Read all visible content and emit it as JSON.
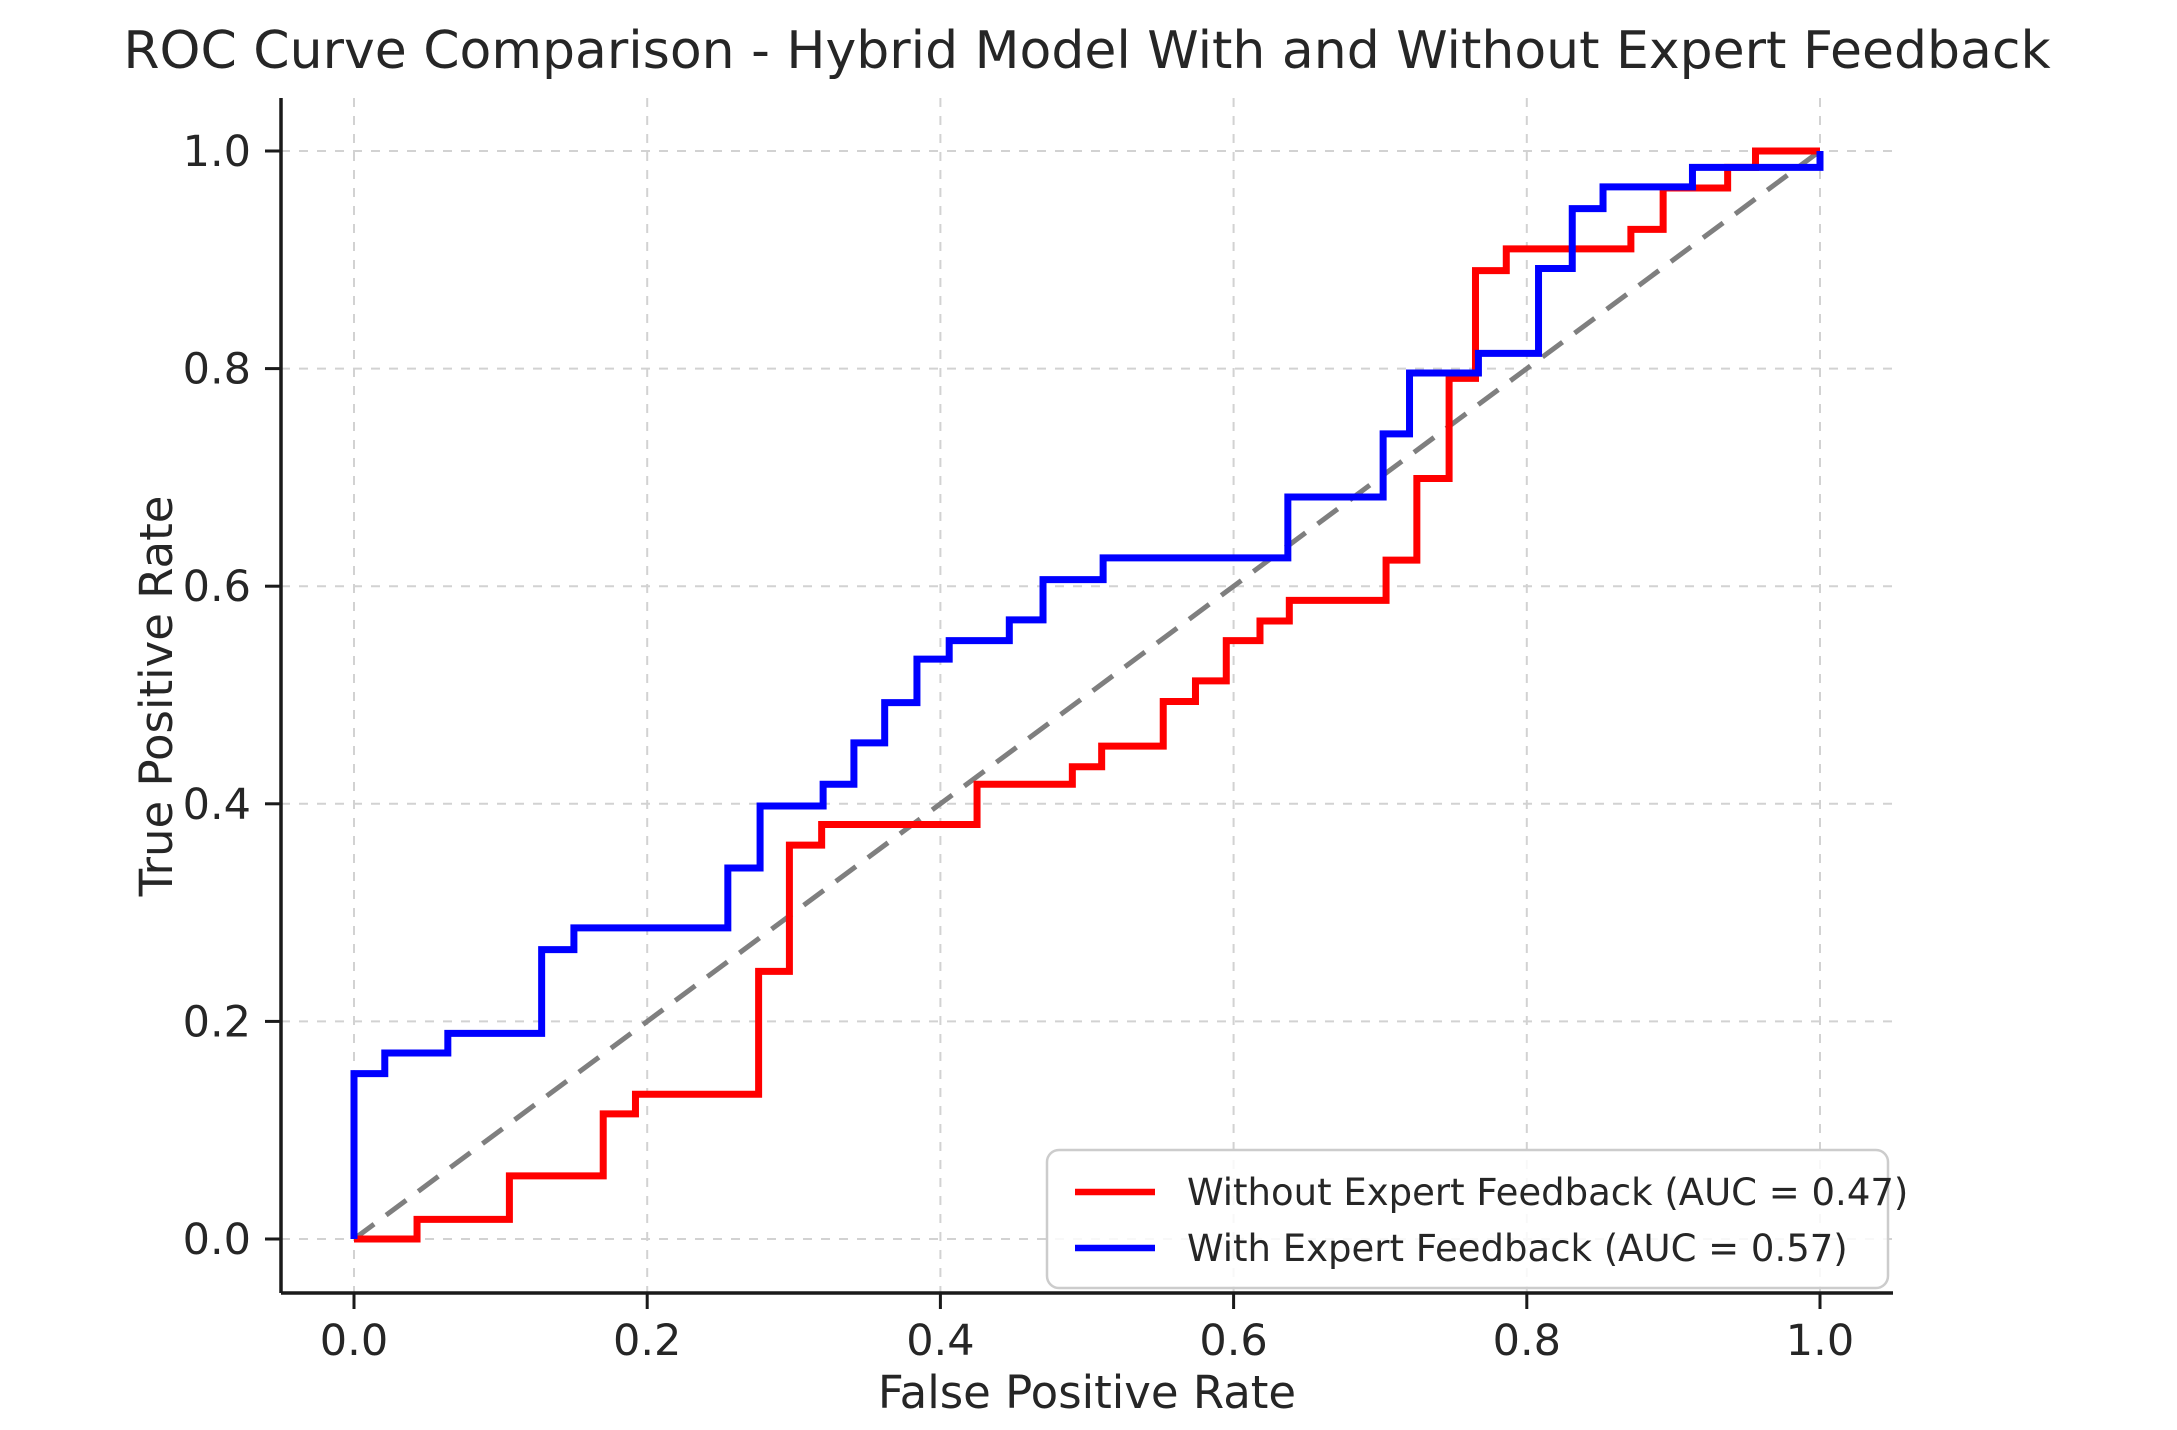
{
  "title": "ROC Curve Comparison - Hybrid Model With and Without Expert Feedback",
  "colors": {
    "without_feedback": "#ff0000",
    "with_feedback": "#0000ff",
    "chance_line": "#7f7f7f",
    "grid": "#d2d2d2",
    "spine": "#1a1a1a",
    "text": "#262626",
    "legend_border": "#cccccc"
  },
  "legend": {
    "entries": [
      {
        "label": "Without Expert Feedback (AUC = 0.47)",
        "color": "#ff0000"
      },
      {
        "label": "With Expert Feedback (AUC = 0.57)",
        "color": "#0000ff"
      }
    ]
  },
  "chart_data": {
    "type": "line",
    "title": "ROC Curve Comparison - Hybrid Model With and Without Expert Feedback",
    "xlabel": "False Positive Rate",
    "ylabel": "True Positive Rate",
    "xlim": [
      0.0,
      1.0
    ],
    "ylim": [
      0.0,
      1.0
    ],
    "xticks": [
      "0.0",
      "0.2",
      "0.4",
      "0.6",
      "0.8",
      "1.0"
    ],
    "yticks": [
      "0.0",
      "0.2",
      "0.4",
      "0.6",
      "0.8",
      "1.0"
    ],
    "xtick_values": [
      0.0,
      0.2,
      0.4,
      0.6,
      0.8,
      1.0
    ],
    "ytick_values": [
      0.0,
      0.2,
      0.4,
      0.6,
      0.8,
      1.0
    ],
    "grid": true,
    "grid_style": "dashed",
    "legend_position": "lower right",
    "series": [
      {
        "name": "Without Expert Feedback (AUC = 0.47)",
        "auc": 0.47,
        "color": "#ff0000",
        "style": "step",
        "points": [
          [
            0.0,
            0.0
          ],
          [
            0.043,
            0.018
          ],
          [
            0.106,
            0.058
          ],
          [
            0.17,
            0.115
          ],
          [
            0.192,
            0.133
          ],
          [
            0.276,
            0.246
          ],
          [
            0.297,
            0.362
          ],
          [
            0.319,
            0.381
          ],
          [
            0.425,
            0.418
          ],
          [
            0.49,
            0.434
          ],
          [
            0.51,
            0.453
          ],
          [
            0.552,
            0.494
          ],
          [
            0.574,
            0.513
          ],
          [
            0.595,
            0.55
          ],
          [
            0.618,
            0.568
          ],
          [
            0.638,
            0.587
          ],
          [
            0.704,
            0.624
          ],
          [
            0.725,
            0.699
          ],
          [
            0.747,
            0.791
          ],
          [
            0.765,
            0.89
          ],
          [
            0.786,
            0.91
          ],
          [
            0.871,
            0.928
          ],
          [
            0.893,
            0.966
          ],
          [
            0.937,
            0.985
          ],
          [
            0.956,
            1.0
          ],
          [
            1.0,
            1.0
          ]
        ]
      },
      {
        "name": "With Expert Feedback (AUC = 0.57)",
        "auc": 0.57,
        "color": "#0000ff",
        "style": "step",
        "points": [
          [
            0.0,
            0.0
          ],
          [
            0.0,
            0.152
          ],
          [
            0.021,
            0.171
          ],
          [
            0.064,
            0.189
          ],
          [
            0.128,
            0.266
          ],
          [
            0.15,
            0.286
          ],
          [
            0.255,
            0.341
          ],
          [
            0.277,
            0.398
          ],
          [
            0.32,
            0.418
          ],
          [
            0.341,
            0.456
          ],
          [
            0.362,
            0.493
          ],
          [
            0.384,
            0.533
          ],
          [
            0.406,
            0.55
          ],
          [
            0.447,
            0.569
          ],
          [
            0.47,
            0.606
          ],
          [
            0.511,
            0.626
          ],
          [
            0.637,
            0.682
          ],
          [
            0.702,
            0.74
          ],
          [
            0.72,
            0.796
          ],
          [
            0.767,
            0.814
          ],
          [
            0.808,
            0.892
          ],
          [
            0.831,
            0.947
          ],
          [
            0.852,
            0.967
          ],
          [
            0.913,
            0.985
          ],
          [
            1.0,
            1.0
          ]
        ]
      },
      {
        "name": "chance-diagonal",
        "color": "#7f7f7f",
        "style": "dashed",
        "points": [
          [
            0.0,
            0.0
          ],
          [
            1.0,
            1.0
          ]
        ]
      }
    ]
  }
}
